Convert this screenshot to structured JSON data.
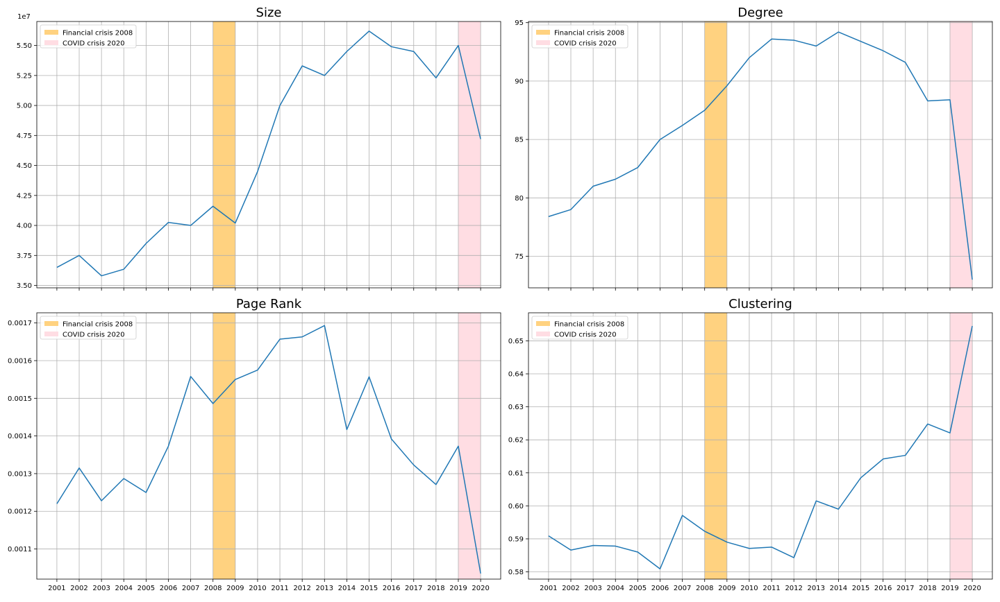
{
  "figure": {
    "x_labels": [
      "2001",
      "2002",
      "2003",
      "2004",
      "2005",
      "2006",
      "2007",
      "2008",
      "2009",
      "2010",
      "2011",
      "2012",
      "2013",
      "2014",
      "2015",
      "2016",
      "2017",
      "2018",
      "2019",
      "2020"
    ],
    "legend_entries": [
      {
        "label": "Financial crisis 2008",
        "color": "#ffd280"
      },
      {
        "label": "COVID crisis 2020",
        "color": "#ffdde3"
      }
    ]
  },
  "chart_data": [
    {
      "type": "line",
      "title": "Size",
      "xlabel": "",
      "ylabel": "",
      "x": [
        2001,
        2002,
        2003,
        2004,
        2005,
        2006,
        2007,
        2008,
        2009,
        2010,
        2011,
        2012,
        2013,
        2014,
        2015,
        2016,
        2017,
        2018,
        2019,
        2020
      ],
      "series": [
        {
          "values": [
            36500000,
            37500000,
            35800000,
            36350000,
            38500000,
            40250000,
            40000000,
            41600000,
            40200000,
            44500000,
            50000000,
            53300000,
            52500000,
            54500000,
            56200000,
            54900000,
            54500000,
            52300000,
            55000000,
            47200000
          ],
          "color": "#1f77b4"
        }
      ],
      "ylim": [
        34800000,
        57000000
      ],
      "yticks": [
        35000000,
        37500000,
        40000000,
        42500000,
        45000000,
        47500000,
        50000000,
        52500000,
        55000000
      ],
      "ytick_labels": [
        "3.50",
        "3.75",
        "4.00",
        "4.25",
        "4.50",
        "4.75",
        "5.00",
        "5.25",
        "5.50"
      ],
      "offset_label": "1e7",
      "shaded_regions": [
        {
          "from": 2008,
          "to": 2009,
          "color": "#ffd280",
          "legend": "Financial crisis 2008"
        },
        {
          "from": 2019,
          "to": 2020,
          "color": "#ffdde3",
          "legend": "COVID crisis 2020"
        }
      ],
      "grid": true,
      "legend_position": "top-left",
      "show_x_tick_labels": false
    },
    {
      "type": "line",
      "title": "Degree",
      "xlabel": "",
      "ylabel": "",
      "x": [
        2001,
        2002,
        2003,
        2004,
        2005,
        2006,
        2007,
        2008,
        2009,
        2010,
        2011,
        2012,
        2013,
        2014,
        2015,
        2016,
        2017,
        2018,
        2019,
        2020
      ],
      "series": [
        {
          "values": [
            78.4,
            79.0,
            81.0,
            81.6,
            82.6,
            85.0,
            86.2,
            87.5,
            89.6,
            92.0,
            93.6,
            93.5,
            93.0,
            94.2,
            93.4,
            92.6,
            91.6,
            88.3,
            88.4,
            73.0
          ],
          "color": "#1f77b4"
        }
      ],
      "ylim": [
        72.3,
        95.1
      ],
      "yticks": [
        75,
        80,
        85,
        90,
        95
      ],
      "ytick_labels": [
        "75",
        "80",
        "85",
        "90",
        "95"
      ],
      "offset_label": "",
      "shaded_regions": [
        {
          "from": 2008,
          "to": 2009,
          "color": "#ffd280",
          "legend": "Financial crisis 2008"
        },
        {
          "from": 2019,
          "to": 2020,
          "color": "#ffdde3",
          "legend": "COVID crisis 2020"
        }
      ],
      "grid": true,
      "legend_position": "top-left",
      "show_x_tick_labels": false
    },
    {
      "type": "line",
      "title": "Page Rank",
      "xlabel": "",
      "ylabel": "",
      "x": [
        2001,
        2002,
        2003,
        2004,
        2005,
        2006,
        2007,
        2008,
        2009,
        2010,
        2011,
        2012,
        2013,
        2014,
        2015,
        2016,
        2017,
        2018,
        2019,
        2020
      ],
      "series": [
        {
          "values": [
            0.00122,
            0.001315,
            0.001228,
            0.001287,
            0.00125,
            0.001373,
            0.001558,
            0.001486,
            0.00155,
            0.001575,
            0.001657,
            0.001663,
            0.001693,
            0.001417,
            0.001557,
            0.001392,
            0.001323,
            0.001271,
            0.001373,
            0.001035
          ],
          "color": "#1f77b4"
        }
      ],
      "ylim": [
        0.00102,
        0.001727
      ],
      "yticks": [
        0.0011,
        0.0012,
        0.0013,
        0.0014,
        0.0015,
        0.0016,
        0.0017
      ],
      "ytick_labels": [
        "0.0011",
        "0.0012",
        "0.0013",
        "0.0014",
        "0.0015",
        "0.0016",
        "0.0017"
      ],
      "offset_label": "",
      "shaded_regions": [
        {
          "from": 2008,
          "to": 2009,
          "color": "#ffd280",
          "legend": "Financial crisis 2008"
        },
        {
          "from": 2019,
          "to": 2020,
          "color": "#ffdde3",
          "legend": "COVID crisis 2020"
        }
      ],
      "grid": true,
      "legend_position": "top-left",
      "show_x_tick_labels": true
    },
    {
      "type": "line",
      "title": "Clustering",
      "xlabel": "",
      "ylabel": "",
      "x": [
        2001,
        2002,
        2003,
        2004,
        2005,
        2006,
        2007,
        2008,
        2009,
        2010,
        2011,
        2012,
        2013,
        2014,
        2015,
        2016,
        2017,
        2018,
        2019,
        2020
      ],
      "series": [
        {
          "values": [
            0.5909,
            0.5866,
            0.588,
            0.5878,
            0.586,
            0.5809,
            0.5971,
            0.5923,
            0.589,
            0.5871,
            0.5875,
            0.5843,
            0.6015,
            0.599,
            0.6085,
            0.6142,
            0.6153,
            0.6248,
            0.6221,
            0.6545
          ],
          "color": "#1f77b4"
        }
      ],
      "ylim": [
        0.5778,
        0.6585
      ],
      "yticks": [
        0.58,
        0.59,
        0.6,
        0.61,
        0.62,
        0.63,
        0.64,
        0.65
      ],
      "ytick_labels": [
        "0.58",
        "0.59",
        "0.60",
        "0.61",
        "0.62",
        "0.63",
        "0.64",
        "0.65"
      ],
      "offset_label": "",
      "shaded_regions": [
        {
          "from": 2008,
          "to": 2009,
          "color": "#ffd280",
          "legend": "Financial crisis 2008"
        },
        {
          "from": 2019,
          "to": 2020,
          "color": "#ffdde3",
          "legend": "COVID crisis 2020"
        }
      ],
      "grid": true,
      "legend_position": "top-left",
      "show_x_tick_labels": true
    }
  ]
}
